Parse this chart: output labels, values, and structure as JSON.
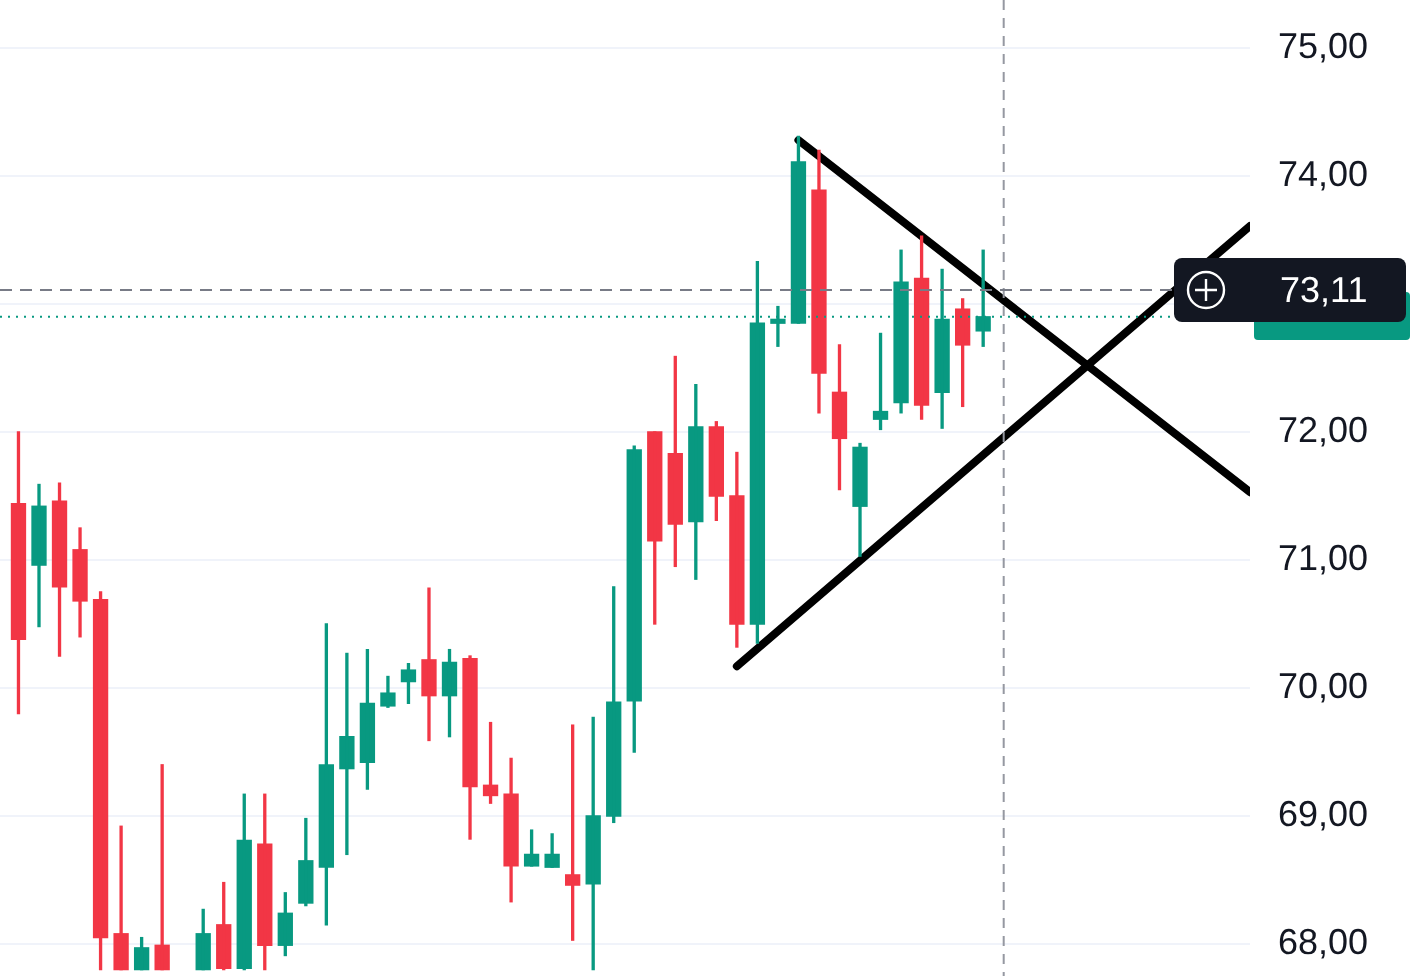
{
  "chart_data": {
    "type": "candlestick",
    "categories": [
      null,
      null,
      null,
      null,
      null,
      null,
      null,
      null,
      null,
      null,
      null,
      null,
      null,
      null,
      null,
      null,
      null,
      null,
      null,
      null,
      null,
      null,
      null,
      null,
      null,
      null,
      null,
      null,
      null,
      null,
      null,
      null,
      null,
      null,
      null,
      null,
      null,
      null,
      null,
      null,
      null,
      null,
      null,
      null,
      null,
      null,
      null,
      null,
      null,
      null,
      null,
      null,
      null,
      null,
      null,
      null,
      null,
      null,
      null,
      null,
      null
    ],
    "ohlc": [
      [
        71.44,
        72.0,
        69.8,
        70.38
      ],
      [
        70.96,
        71.59,
        70.48,
        71.42
      ],
      [
        71.46,
        71.6,
        70.25,
        70.79
      ],
      [
        71.08,
        71.25,
        70.4,
        70.68
      ],
      [
        70.69,
        70.75,
        67.8,
        68.05
      ],
      [
        68.08,
        68.92,
        67.8,
        67.8
      ],
      [
        67.8,
        68.05,
        67.8,
        67.97
      ],
      [
        67.99,
        69.4,
        67.8,
        67.8
      ],
      null,
      [
        67.8,
        68.27,
        67.8,
        68.08
      ],
      [
        68.15,
        68.48,
        67.8,
        67.81
      ],
      [
        67.81,
        69.17,
        67.8,
        68.81
      ],
      [
        68.78,
        69.17,
        67.8,
        67.99
      ],
      [
        67.99,
        68.4,
        67.91,
        68.24
      ],
      [
        68.32,
        68.98,
        68.3,
        68.65
      ],
      [
        68.6,
        70.5,
        68.15,
        69.4
      ],
      [
        69.37,
        70.27,
        68.7,
        69.62
      ],
      [
        69.42,
        70.3,
        69.21,
        69.88
      ],
      [
        69.86,
        70.09,
        69.85,
        69.96
      ],
      [
        70.05,
        70.19,
        69.88,
        70.14
      ],
      [
        70.22,
        70.78,
        69.59,
        69.94
      ],
      [
        69.94,
        70.3,
        69.62,
        70.2
      ],
      [
        70.23,
        70.25,
        68.82,
        69.23
      ],
      [
        69.24,
        69.73,
        69.1,
        69.16
      ],
      [
        69.17,
        69.45,
        68.33,
        68.61
      ],
      [
        68.61,
        68.89,
        68.61,
        68.7
      ],
      [
        68.6,
        68.86,
        68.6,
        68.7
      ],
      [
        68.54,
        69.71,
        68.03,
        68.46
      ],
      [
        68.47,
        69.77,
        67.8,
        69.0
      ],
      [
        69.0,
        70.79,
        68.95,
        69.89
      ],
      [
        69.9,
        71.89,
        69.5,
        71.86
      ],
      [
        72.0,
        72.0,
        70.5,
        71.15
      ],
      [
        71.83,
        72.59,
        70.95,
        71.28
      ],
      [
        71.3,
        72.37,
        70.85,
        72.04
      ],
      [
        72.04,
        72.08,
        71.31,
        71.5
      ],
      [
        71.5,
        71.84,
        70.32,
        70.5
      ],
      [
        70.5,
        73.33,
        70.35,
        72.85
      ],
      [
        72.85,
        72.98,
        72.67,
        72.88
      ],
      [
        72.85,
        74.31,
        72.85,
        74.11
      ],
      [
        73.89,
        74.2,
        72.15,
        72.46
      ],
      [
        72.31,
        72.68,
        71.55,
        71.95
      ],
      [
        71.42,
        71.91,
        71.03,
        71.88
      ],
      [
        72.1,
        72.77,
        72.02,
        72.16
      ],
      [
        72.23,
        73.42,
        72.15,
        73.17
      ],
      [
        73.2,
        73.53,
        72.1,
        72.21
      ],
      [
        72.31,
        73.27,
        72.03,
        72.88
      ],
      [
        72.96,
        73.04,
        72.2,
        72.68
      ],
      [
        72.79,
        73.42,
        72.67,
        72.9
      ],
      null,
      null,
      null,
      null,
      null,
      null,
      null,
      null,
      null,
      null,
      null,
      null,
      null
    ],
    "colors": [
      "#f23645",
      "#089981",
      "#f23645",
      "#f23645",
      "#f23645",
      "#f23645",
      "#089981",
      "#f23645",
      null,
      "#089981",
      "#f23645",
      "#089981",
      "#f23645",
      "#089981",
      "#089981",
      "#089981",
      "#089981",
      "#089981",
      "#089981",
      "#089981",
      "#f23645",
      "#089981",
      "#f23645",
      "#f23645",
      "#f23645",
      "#089981",
      "#089981",
      "#f23645",
      "#089981",
      "#089981",
      "#089981",
      "#f23645",
      "#f23645",
      "#089981",
      "#f23645",
      "#f23645",
      "#089981",
      "#089981",
      "#089981",
      "#f23645",
      "#f23645",
      "#089981",
      "#089981",
      "#089981",
      "#f23645",
      "#089981",
      "#f23645",
      "#089981",
      null,
      null,
      null,
      null,
      null,
      null,
      null,
      null,
      null,
      null,
      null,
      null,
      null
    ],
    "series": [
      {
        "type": "line",
        "color": "#000000",
        "values": [
          null,
          null,
          null,
          null,
          null,
          null,
          null,
          null,
          null,
          null,
          null,
          null,
          null,
          null,
          null,
          null,
          null,
          null,
          null,
          null,
          null,
          null,
          null,
          null,
          null,
          null,
          null,
          null,
          null,
          null,
          null,
          null,
          null,
          null,
          null,
          null,
          null,
          null,
          74.28,
          null,
          null,
          null,
          null,
          null,
          null,
          null,
          null,
          null,
          null,
          null,
          null,
          null,
          null,
          null,
          null,
          null,
          null,
          null,
          null,
          null,
          71.53
        ]
      },
      {
        "type": "line",
        "color": "#000000",
        "values": [
          null,
          null,
          null,
          null,
          null,
          null,
          null,
          null,
          null,
          null,
          null,
          null,
          null,
          null,
          null,
          null,
          null,
          null,
          null,
          null,
          null,
          null,
          null,
          null,
          null,
          null,
          null,
          null,
          null,
          null,
          null,
          null,
          null,
          null,
          null,
          70.17,
          null,
          null,
          null,
          null,
          null,
          null,
          null,
          null,
          null,
          null,
          null,
          null,
          null,
          null,
          null,
          null,
          null,
          null,
          null,
          null,
          null,
          null,
          null,
          null,
          73.61
        ]
      }
    ],
    "ylim": [
      67.75,
      75.375
    ],
    "yticks": [
      {
        "value": 68,
        "label": "68,00"
      },
      {
        "value": 69,
        "label": "69,00"
      },
      {
        "value": 70,
        "label": "70,00"
      },
      {
        "value": 71,
        "label": "71,00"
      },
      {
        "value": 72,
        "label": "72,00"
      },
      {
        "value": 73,
        "label": null
      },
      {
        "value": 74,
        "label": "74,00"
      },
      {
        "value": 75,
        "label": "75,00"
      }
    ],
    "ref_lines": [
      {
        "axis": "y",
        "value": 73.11,
        "label": "73,11",
        "color": "#787b86",
        "line_style": "dashed"
      },
      {
        "axis": "y",
        "value": 72.9,
        "color": "#089981",
        "line_style": "dotted"
      }
    ],
    "tick_labels": "y",
    "grid": "y",
    "legend": false
  }
}
